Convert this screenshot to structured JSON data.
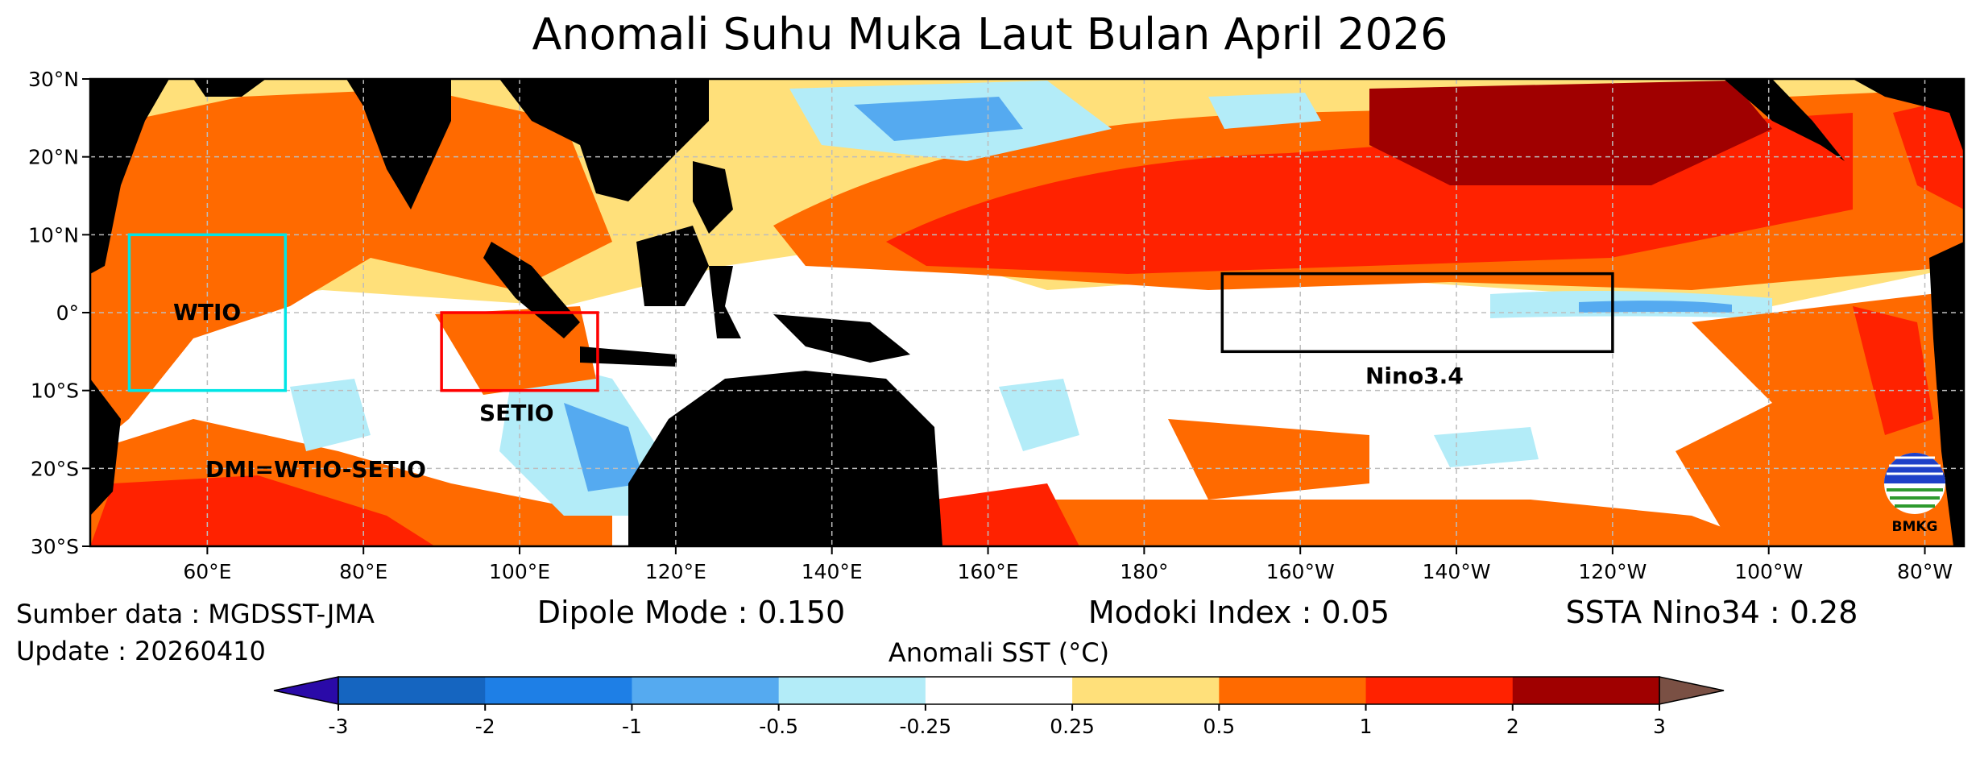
{
  "title": "Anomali Suhu Muka Laut Bulan April 2026",
  "colors": {
    "land": "#000000",
    "frame": "#000000",
    "grid": "#bdbdbd",
    "wtio_box": "#00e5e5",
    "setio_box": "#ff0000",
    "nino_box": "#000000"
  },
  "map": {
    "lon_range": [
      45,
      285
    ],
    "lat_range": [
      -30,
      30
    ],
    "lat_ticks": [
      "30°N",
      "20°N",
      "10°N",
      "0°",
      "10°S",
      "20°S",
      "30°S"
    ],
    "lon_ticks": [
      "60°E",
      "80°E",
      "100°E",
      "120°E",
      "140°E",
      "160°E",
      "180°",
      "160°W",
      "140°W",
      "120°W",
      "100°W",
      "80°W"
    ],
    "boxes": [
      {
        "name": "WTIO",
        "lon": [
          50,
          70
        ],
        "lat": [
          -10,
          10
        ]
      },
      {
        "name": "SETIO",
        "lon": [
          90,
          110
        ],
        "lat": [
          -10,
          0
        ]
      },
      {
        "name": "Nino3.4",
        "lon": [
          190,
          240
        ],
        "lat": [
          -5,
          5
        ]
      }
    ],
    "labels": {
      "wtio": "WTIO",
      "setio": "SETIO",
      "nino34": "Nino3.4",
      "dmi": "DMI=WTIO-SETIO"
    },
    "logo_text": "BMKG"
  },
  "footer": {
    "source": "Sumber data : MGDSST-JMA",
    "update": "Update : 20260410",
    "dipole": "Dipole Mode : 0.150",
    "modoki": "Modoki Index : 0.05",
    "nino34": "SSTA Nino34 : 0.28"
  },
  "colorbar": {
    "title": "Anomali SST (°C)",
    "tick_labels": [
      "-3",
      "-2",
      "-1",
      "-0.5",
      "-0.25",
      "0.25",
      "0.5",
      "1",
      "2",
      "3"
    ],
    "colors": [
      "#1565c0",
      "#1e7fe6",
      "#55aaf0",
      "#b3ecf8",
      "#ffffff",
      "#ffe07a",
      "#ff6a00",
      "#ff2200",
      "#a00000"
    ],
    "under_color": "#2a0aa8",
    "over_color": "#7a5044"
  }
}
